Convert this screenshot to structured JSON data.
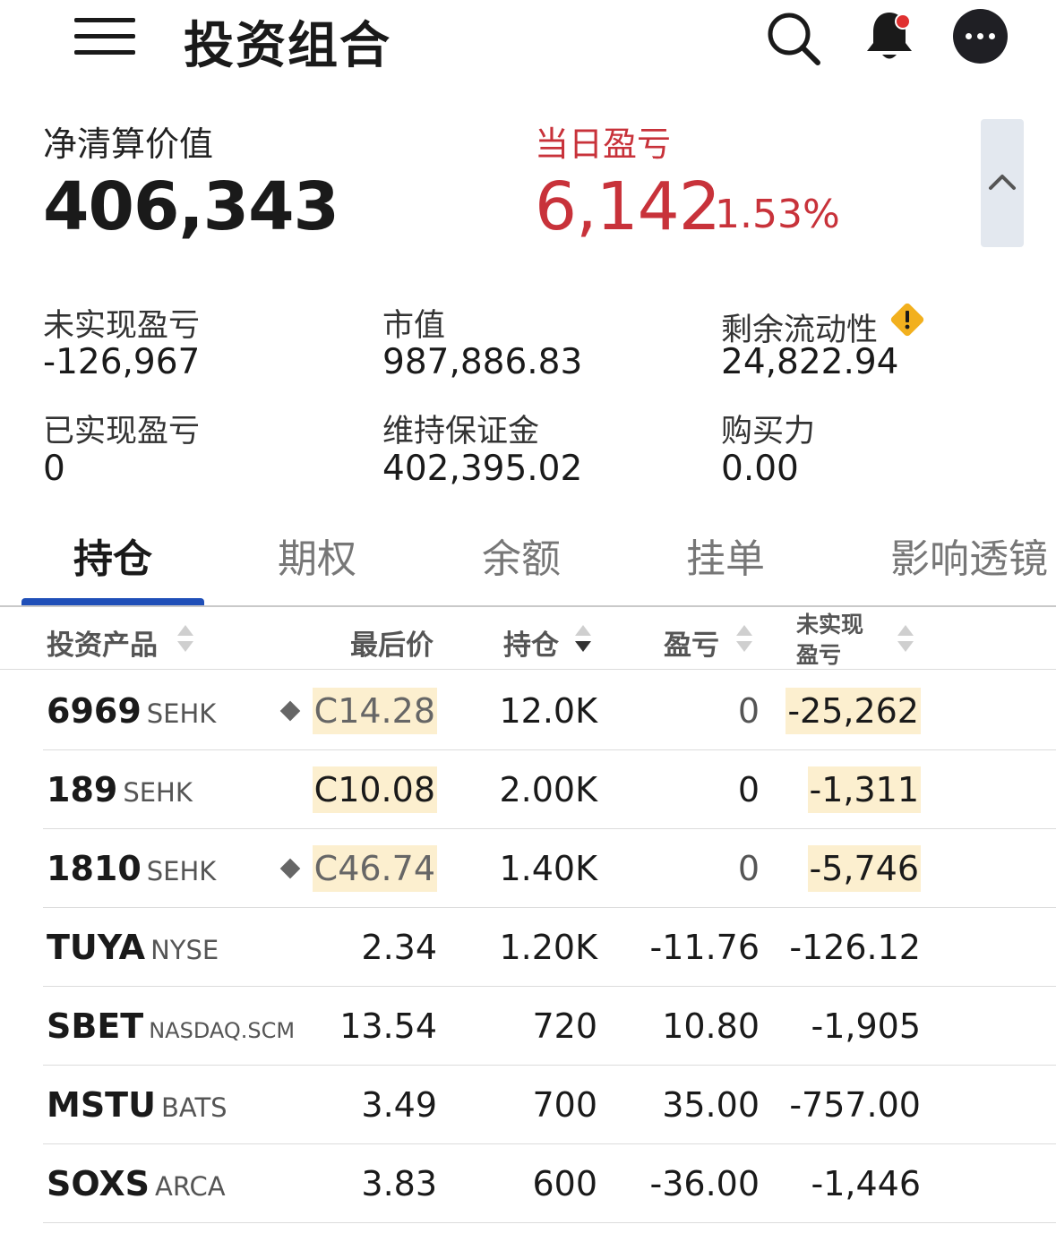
{
  "header": {
    "title": "投资组合",
    "icons": [
      "menu-icon",
      "search-icon",
      "bell-icon",
      "more-icon"
    ],
    "notification_dot_color": "#e03131"
  },
  "summary": {
    "net_liq_label": "净清算价值",
    "net_liq_value": "406,343",
    "daily_pnl_label": "当日盈亏",
    "daily_pnl_value": "6,142",
    "daily_pnl_pct": "1.53%"
  },
  "metrics": {
    "unrealized_label": "未实现盈亏",
    "unrealized_value": "-126,967",
    "market_value_label": "市值",
    "market_value_value": "987,886.83",
    "excess_liquidity_label": "剩余流动性",
    "excess_liquidity_value": "24,822.94",
    "realized_label": "已实现盈亏",
    "realized_value": "0",
    "maintenance_label": "维持保证金",
    "maintenance_value": "402,395.02",
    "buying_power_label": "购买力",
    "buying_power_value": "0.00"
  },
  "tabs": [
    "持仓",
    "期权",
    "余额",
    "挂单",
    "影响透镜"
  ],
  "table": {
    "columns": {
      "product": "投资产品",
      "last": "最后价",
      "position": "持仓",
      "pnl": "盈亏",
      "unrealized_line1": "未实现",
      "unrealized_line2": "盈亏"
    },
    "rows": [
      {
        "symbol": "6969",
        "exchange": "SEHK",
        "last": "C14.28",
        "position": "12.0K",
        "pnl": "0",
        "unrealized": "-25,262"
      },
      {
        "symbol": "189",
        "exchange": "SEHK",
        "last": "C10.08",
        "position": "2.00K",
        "pnl": "0",
        "unrealized": "-1,311"
      },
      {
        "symbol": "1810",
        "exchange": "SEHK",
        "last": "C46.74",
        "position": "1.40K",
        "pnl": "0",
        "unrealized": "-5,746"
      },
      {
        "symbol": "TUYA",
        "exchange": "NYSE",
        "last": "2.34",
        "position": "1.20K",
        "pnl": "-11.76",
        "unrealized": "-126.12"
      },
      {
        "symbol": "SBET",
        "exchange": "NASDAQ.SCM",
        "last": "13.54",
        "position": "720",
        "pnl": "10.80",
        "unrealized": "-1,905"
      },
      {
        "symbol": "MSTU",
        "exchange": "BATS",
        "last": "3.49",
        "position": "700",
        "pnl": "35.00",
        "unrealized": "-757.00"
      },
      {
        "symbol": "SOXS",
        "exchange": "ARCA",
        "last": "3.83",
        "position": "600",
        "pnl": "-36.00",
        "unrealized": "-1,446"
      }
    ]
  },
  "colors": {
    "positive": "#c8323a",
    "negative": "#2e8b3e",
    "tab_indicator": "#1f4fb8",
    "highlight": "#fcefcf"
  }
}
